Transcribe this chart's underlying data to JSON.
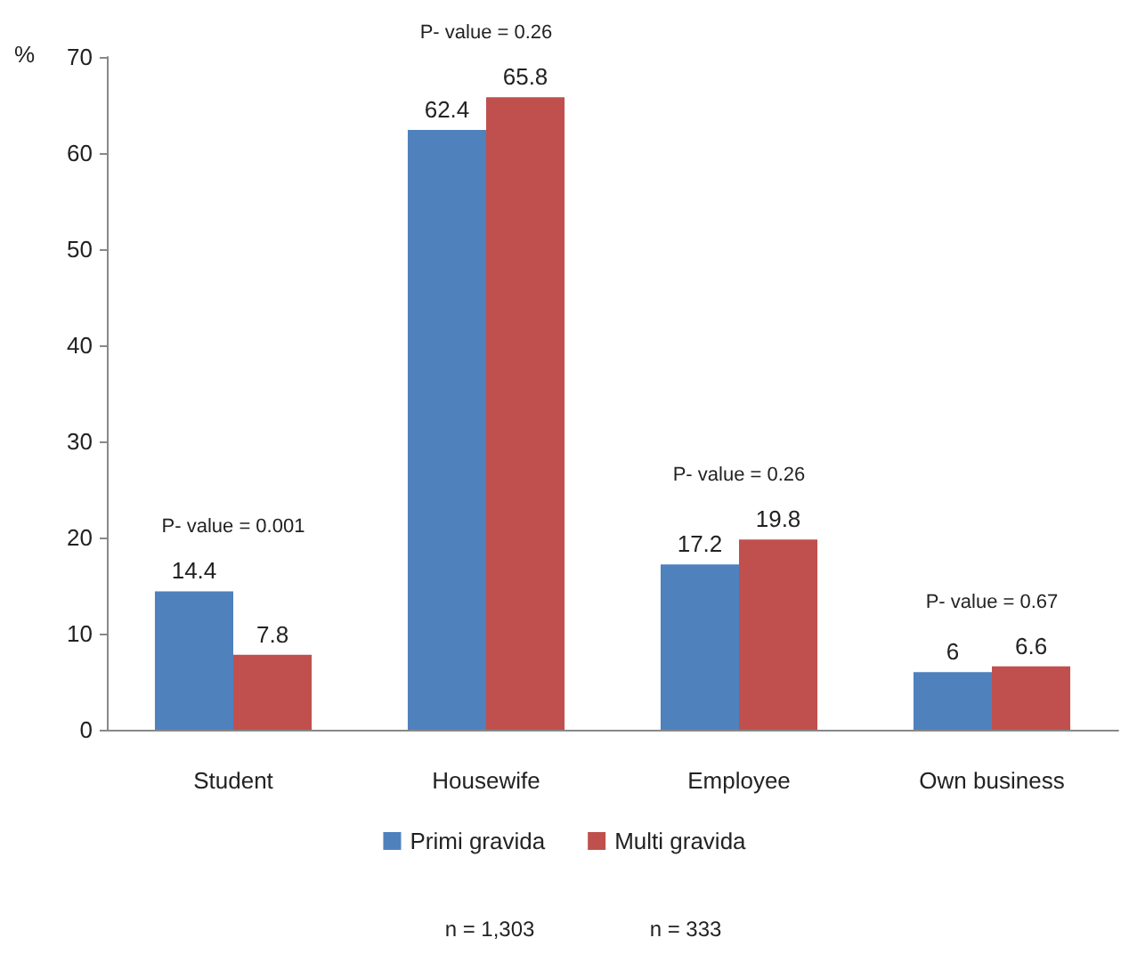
{
  "chart_data": {
    "type": "bar",
    "ylabel": "%",
    "categories": [
      "Student",
      "Housewife",
      "Employee",
      "Own business"
    ],
    "series": [
      {
        "name": "Primi gravida",
        "color": "#4f81bd",
        "values": [
          14.4,
          62.4,
          17.2,
          6
        ]
      },
      {
        "name": "Multi gravida",
        "color": "#c0504d",
        "values": [
          7.8,
          65.8,
          19.8,
          6.6
        ]
      }
    ],
    "ylim": [
      0,
      70
    ],
    "yticks": [
      0,
      10,
      20,
      30,
      40,
      50,
      60,
      70
    ],
    "grid": false,
    "legend": "bottom",
    "data_labels": true,
    "annotations": [
      "P- value = 0.001",
      "P- value = 0.26",
      "P- value = 0.26",
      "P- value = 0.67",
      "n = 1,303",
      "n = 333"
    ]
  }
}
